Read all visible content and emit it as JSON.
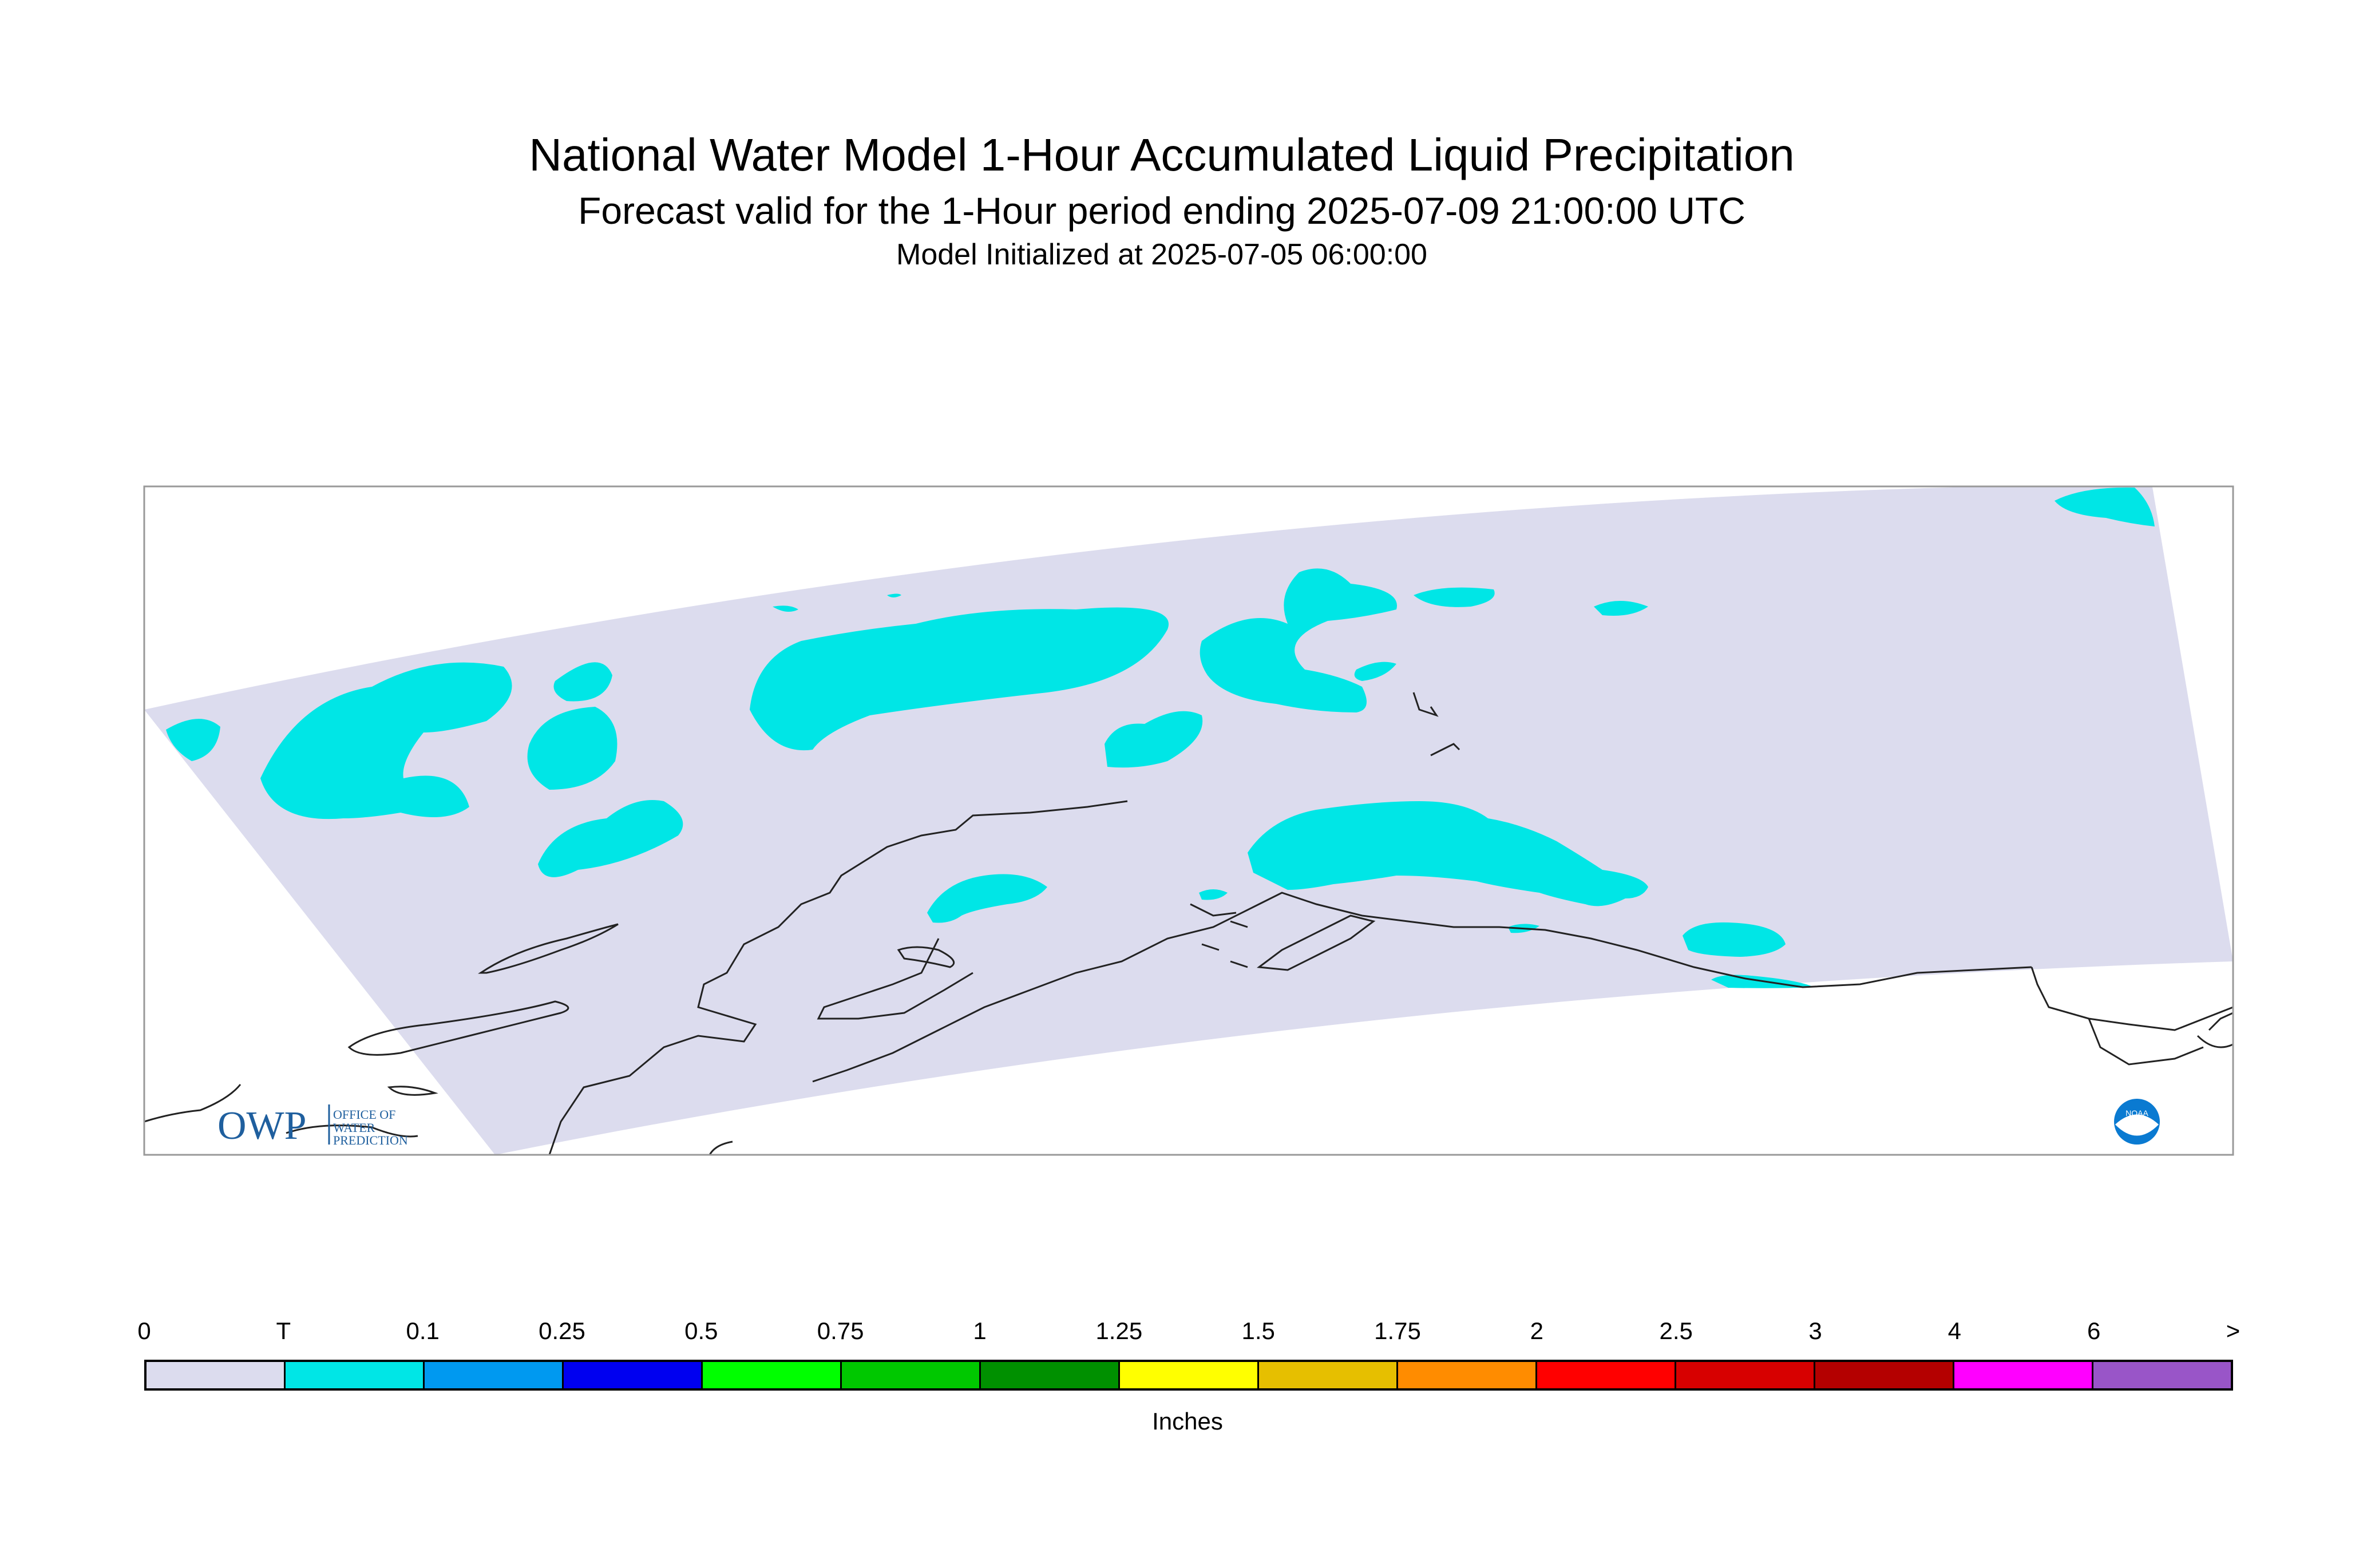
{
  "header": {
    "title": "National Water Model 1-Hour Accumulated Liquid Precipitation",
    "subtitle": "Forecast valid for the 1-Hour period ending 2025-07-09 21:00:00 UTC",
    "init": "Model Initialized at 2025-07-05 06:00:00"
  },
  "legend": {
    "units": "Inches",
    "ticks": [
      "0",
      "T",
      "0.1",
      "0.25",
      "0.5",
      "0.75",
      "1",
      "1.25",
      "1.5",
      "1.75",
      "2",
      "2.5",
      "3",
      "4",
      "6",
      ">"
    ],
    "colors": [
      "#dcdcee",
      "#00e6e6",
      "#0099f0",
      "#0000f0",
      "#00ff00",
      "#00c800",
      "#009000",
      "#ffff00",
      "#e6bf00",
      "#ff8c00",
      "#ff0000",
      "#d70000",
      "#b40000",
      "#ff00ff",
      "#9955c8"
    ]
  },
  "map": {
    "region": "Alaska",
    "background_color": "#dcdcee",
    "precip_color": "#00e6e6"
  },
  "logos": {
    "owp": {
      "mark": "OWP",
      "text": "OFFICE OF WATER PREDICTION"
    },
    "noaa": {
      "text": "NOAA"
    }
  }
}
